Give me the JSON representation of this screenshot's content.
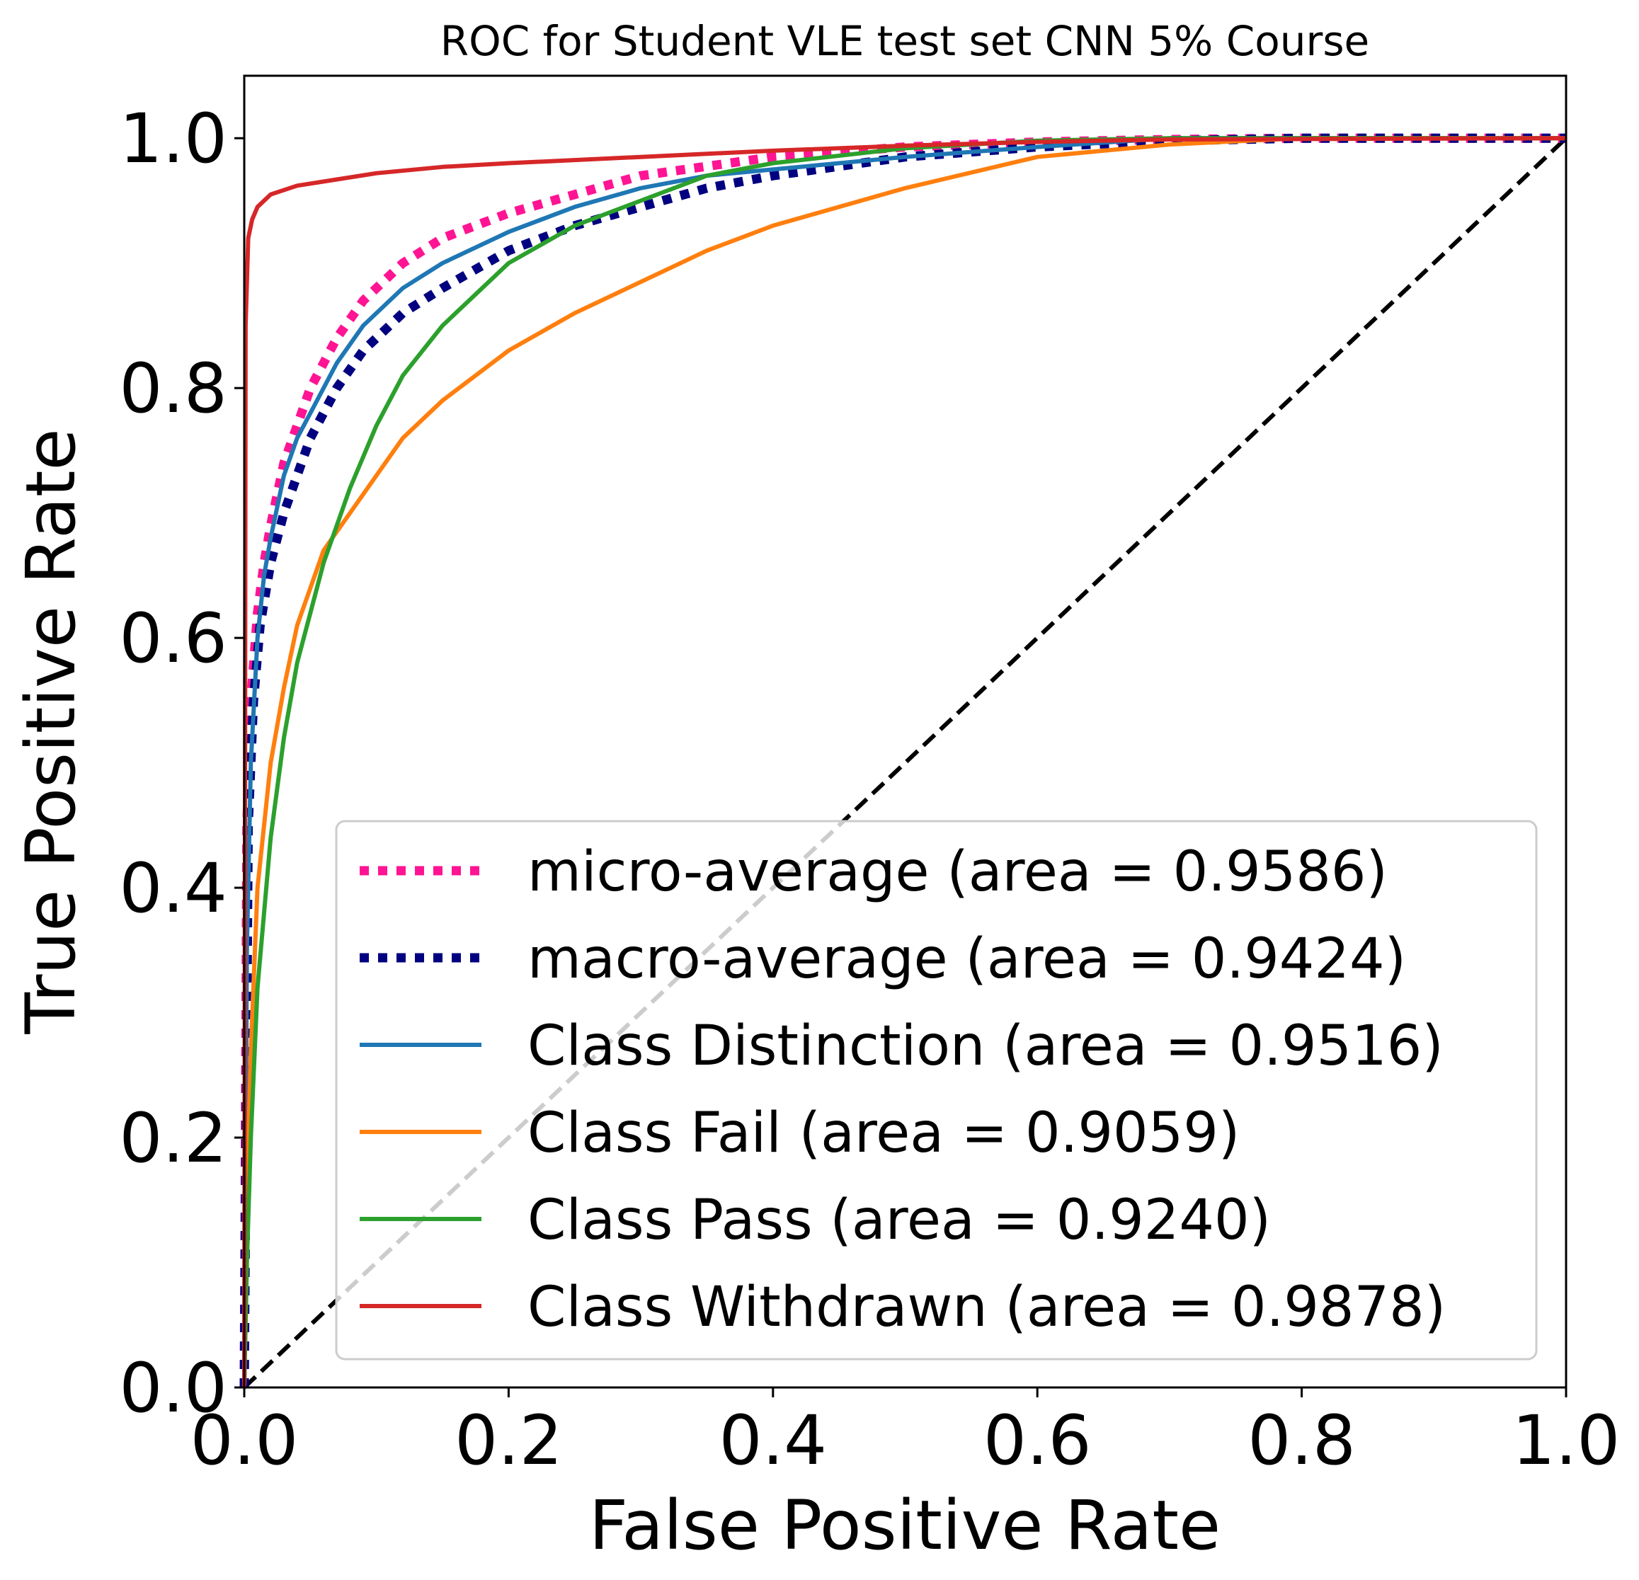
{
  "chart_data": {
    "type": "line",
    "title": "ROC for Student VLE test set CNN 5% Course",
    "xlabel": "False Positive Rate",
    "ylabel": "True Positive Rate",
    "xlim": [
      0.0,
      1.0
    ],
    "ylim": [
      0.0,
      1.05
    ],
    "xticks": [
      0.0,
      0.2,
      0.4,
      0.6,
      0.8,
      1.0
    ],
    "yticks": [
      0.0,
      0.2,
      0.4,
      0.6,
      0.8,
      1.0
    ],
    "xtick_labels": [
      "0.0",
      "0.2",
      "0.4",
      "0.6",
      "0.8",
      "1.0"
    ],
    "ytick_labels": [
      "0.0",
      "0.2",
      "0.4",
      "0.6",
      "0.8",
      "1.0"
    ],
    "legend_position": "lower-right",
    "grid": false,
    "series": [
      {
        "name": "micro-average (area = 0.9586)",
        "color": "#ff1493",
        "style": "dotted",
        "x": [
          0.0,
          0.002,
          0.005,
          0.01,
          0.015,
          0.02,
          0.03,
          0.04,
          0.05,
          0.07,
          0.09,
          0.12,
          0.15,
          0.2,
          0.25,
          0.3,
          0.4,
          0.5,
          0.6,
          0.7,
          0.8,
          1.0
        ],
        "y": [
          0.0,
          0.45,
          0.55,
          0.62,
          0.66,
          0.69,
          0.74,
          0.77,
          0.8,
          0.84,
          0.87,
          0.9,
          0.92,
          0.94,
          0.955,
          0.97,
          0.985,
          0.993,
          0.997,
          0.999,
          1.0,
          1.0
        ]
      },
      {
        "name": "macro-average (area = 0.9424)",
        "color": "#000080",
        "style": "dotted",
        "x": [
          0.0,
          0.003,
          0.007,
          0.012,
          0.02,
          0.03,
          0.04,
          0.05,
          0.07,
          0.09,
          0.12,
          0.15,
          0.2,
          0.25,
          0.3,
          0.35,
          0.4,
          0.5,
          0.6,
          0.7,
          0.8,
          1.0
        ],
        "y": [
          0.0,
          0.45,
          0.55,
          0.61,
          0.66,
          0.7,
          0.73,
          0.76,
          0.8,
          0.83,
          0.86,
          0.88,
          0.91,
          0.93,
          0.945,
          0.96,
          0.97,
          0.985,
          0.993,
          0.998,
          1.0,
          1.0
        ]
      },
      {
        "name": "Class Distinction (area = 0.9516)",
        "color": "#1f77b4",
        "style": "solid",
        "x": [
          0.0,
          0.002,
          0.005,
          0.01,
          0.015,
          0.02,
          0.03,
          0.04,
          0.05,
          0.07,
          0.09,
          0.12,
          0.15,
          0.2,
          0.25,
          0.3,
          0.35,
          0.4,
          0.5,
          0.6,
          0.7,
          1.0
        ],
        "y": [
          0.0,
          0.35,
          0.5,
          0.6,
          0.65,
          0.68,
          0.73,
          0.76,
          0.78,
          0.82,
          0.85,
          0.88,
          0.9,
          0.925,
          0.945,
          0.96,
          0.97,
          0.975,
          0.985,
          0.993,
          1.0,
          1.0
        ]
      },
      {
        "name": "Class Fail (area = 0.9059)",
        "color": "#ff7f0e",
        "style": "solid",
        "x": [
          0.0,
          0.002,
          0.005,
          0.01,
          0.02,
          0.03,
          0.04,
          0.05,
          0.06,
          0.08,
          0.1,
          0.12,
          0.15,
          0.2,
          0.25,
          0.3,
          0.35,
          0.4,
          0.5,
          0.6,
          0.7,
          0.8,
          1.0
        ],
        "y": [
          0.0,
          0.15,
          0.27,
          0.4,
          0.5,
          0.56,
          0.61,
          0.64,
          0.67,
          0.7,
          0.73,
          0.76,
          0.79,
          0.83,
          0.86,
          0.885,
          0.91,
          0.93,
          0.96,
          0.985,
          0.995,
          1.0,
          1.0
        ]
      },
      {
        "name": "Class Pass (area = 0.9240)",
        "color": "#2ca02c",
        "style": "solid",
        "x": [
          0.0,
          0.002,
          0.005,
          0.01,
          0.02,
          0.03,
          0.04,
          0.05,
          0.06,
          0.08,
          0.1,
          0.12,
          0.15,
          0.2,
          0.25,
          0.3,
          0.35,
          0.4,
          0.5,
          0.6,
          0.7,
          1.0
        ],
        "y": [
          0.0,
          0.1,
          0.2,
          0.32,
          0.44,
          0.52,
          0.58,
          0.62,
          0.66,
          0.72,
          0.77,
          0.81,
          0.85,
          0.9,
          0.93,
          0.95,
          0.97,
          0.98,
          0.992,
          0.998,
          1.0,
          1.0
        ]
      },
      {
        "name": "Class Withdrawn (area = 0.9878)",
        "color": "#d62728",
        "style": "solid",
        "x": [
          0.0,
          0.001,
          0.003,
          0.006,
          0.01,
          0.02,
          0.04,
          0.07,
          0.1,
          0.15,
          0.2,
          0.3,
          0.4,
          0.5,
          0.6,
          0.7,
          1.0
        ],
        "y": [
          0.0,
          0.85,
          0.92,
          0.935,
          0.945,
          0.955,
          0.962,
          0.967,
          0.972,
          0.977,
          0.98,
          0.985,
          0.99,
          0.994,
          0.997,
          0.999,
          1.0
        ]
      }
    ],
    "reference_line": {
      "x": [
        0.0,
        1.0
      ],
      "y": [
        0.0,
        1.0
      ],
      "color": "#000000",
      "style": "dashed"
    }
  }
}
